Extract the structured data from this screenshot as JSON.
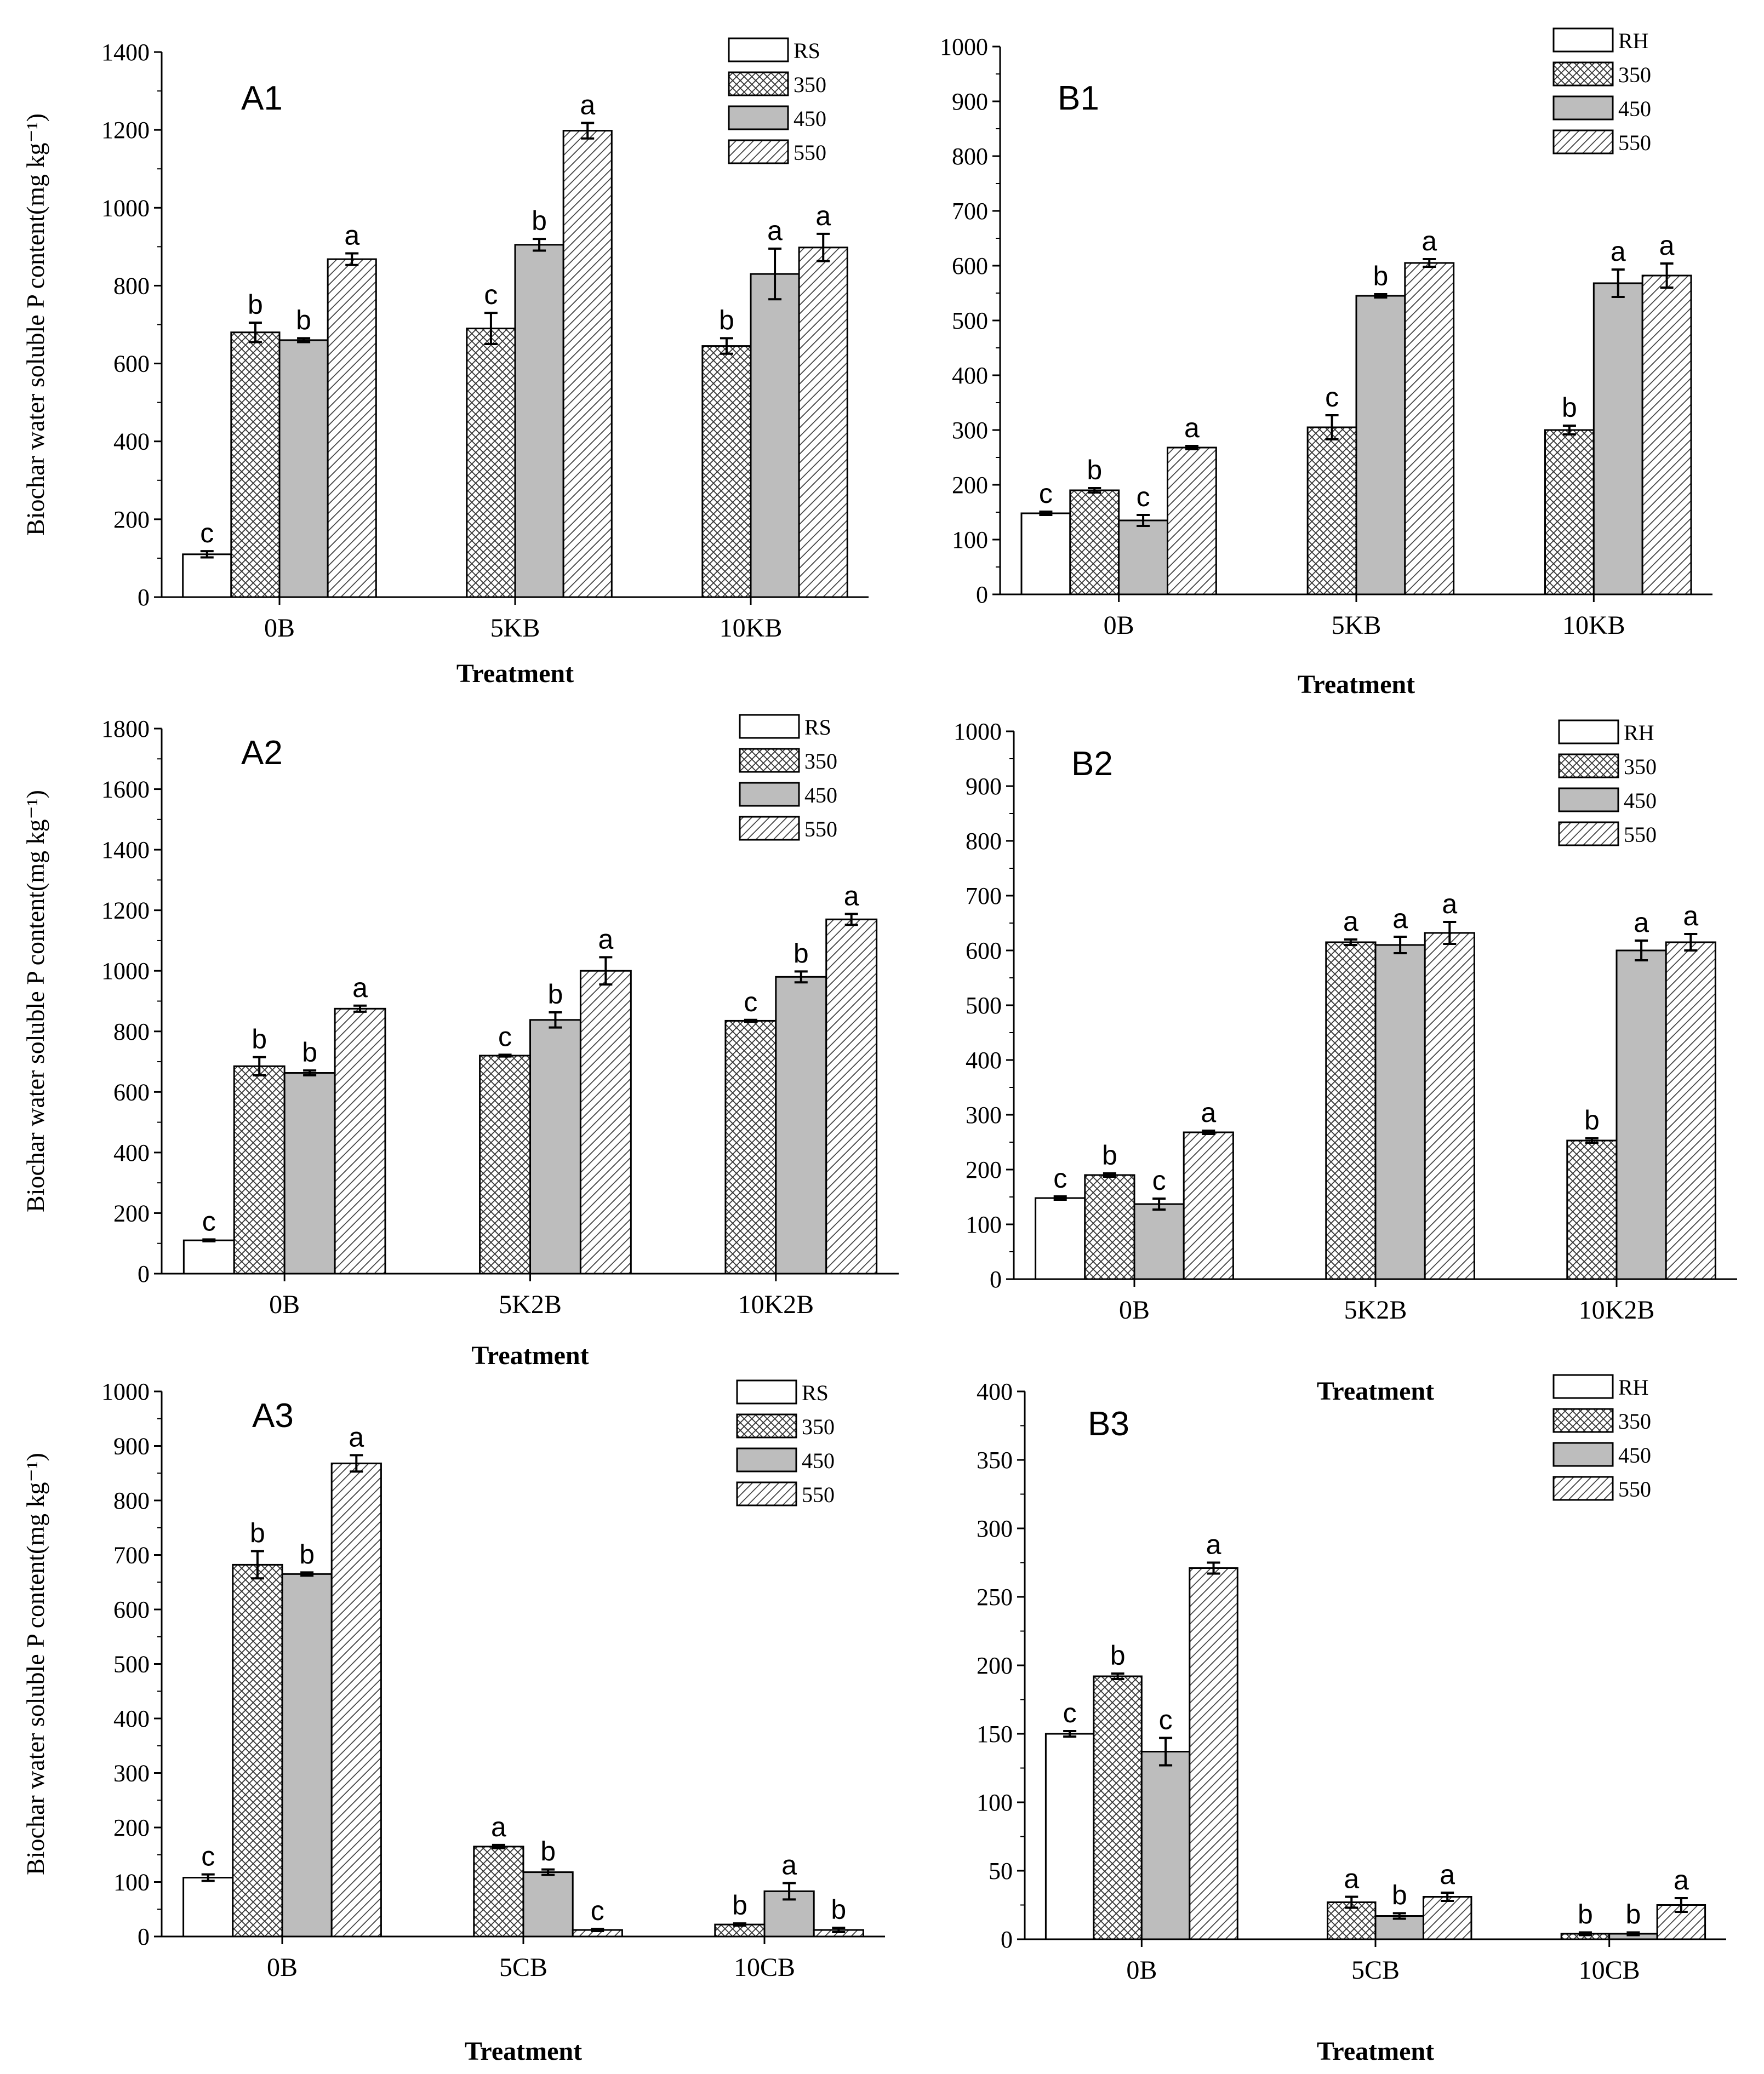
{
  "chart_data": [
    {
      "id": "A1",
      "type": "bar",
      "panel_label": "A1",
      "categories": [
        "0B",
        "5KB",
        "10KB"
      ],
      "legend_title_series": [
        "RS",
        "350",
        "450",
        "550"
      ],
      "series": [
        {
          "name": "RS",
          "values": [
            110,
            null,
            null
          ],
          "errors": [
            8,
            null,
            null
          ],
          "letters": [
            "c",
            "",
            ""
          ]
        },
        {
          "name": "350",
          "values": [
            680,
            690,
            645
          ],
          "errors": [
            25,
            40,
            20
          ],
          "letters": [
            "b",
            "c",
            "b"
          ]
        },
        {
          "name": "450",
          "values": [
            660,
            905,
            830
          ],
          "errors": [
            5,
            15,
            65
          ],
          "letters": [
            "b",
            "b",
            "a"
          ]
        },
        {
          "name": "550",
          "values": [
            868,
            1198,
            898
          ],
          "errors": [
            15,
            20,
            35
          ],
          "letters": [
            "a",
            "a",
            "a"
          ]
        }
      ],
      "ylabel": "Biochar water soluble P content(mg  kg⁻¹)",
      "xlabel": "Treatment",
      "ylim": [
        0,
        1400
      ],
      "yticks": [
        "0",
        "200",
        "400",
        "600",
        "800",
        "1000",
        "1200",
        "1400"
      ],
      "legend_position": "top-right"
    },
    {
      "id": "B1",
      "type": "bar",
      "panel_label": "B1",
      "categories": [
        "0B",
        "5KB",
        "10KB"
      ],
      "legend_title_series": [
        "RH",
        "350",
        "450",
        "550"
      ],
      "series": [
        {
          "name": "RH",
          "values": [
            148,
            null,
            null
          ],
          "errors": [
            3,
            null,
            null
          ],
          "letters": [
            "c",
            "",
            ""
          ]
        },
        {
          "name": "350",
          "values": [
            190,
            305,
            300
          ],
          "errors": [
            4,
            22,
            8
          ],
          "letters": [
            "b",
            "c",
            "b"
          ]
        },
        {
          "name": "450",
          "values": [
            135,
            545,
            568
          ],
          "errors": [
            10,
            3,
            25
          ],
          "letters": [
            "c",
            "b",
            "a"
          ]
        },
        {
          "name": "550",
          "values": [
            268,
            605,
            582
          ],
          "errors": [
            3,
            7,
            22
          ],
          "letters": [
            "a",
            "a",
            "a"
          ]
        }
      ],
      "ylabel": "",
      "xlabel": "Treatment",
      "ylim": [
        0,
        1000
      ],
      "yticks": [
        "0",
        "100",
        "200",
        "300",
        "400",
        "500",
        "600",
        "700",
        "800",
        "900",
        "1000"
      ],
      "legend_position": "top-right"
    },
    {
      "id": "A2",
      "type": "bar",
      "panel_label": "A2",
      "categories": [
        "0B",
        "5K2B",
        "10K2B"
      ],
      "legend_title_series": [
        "RS",
        "350",
        "450",
        "550"
      ],
      "series": [
        {
          "name": "RS",
          "values": [
            110,
            null,
            null
          ],
          "errors": [
            3,
            null,
            null
          ],
          "letters": [
            "c",
            "",
            ""
          ]
        },
        {
          "name": "350",
          "values": [
            685,
            720,
            835
          ],
          "errors": [
            30,
            3,
            3
          ],
          "letters": [
            "b",
            "c",
            "c"
          ]
        },
        {
          "name": "450",
          "values": [
            663,
            838,
            980
          ],
          "errors": [
            8,
            25,
            18
          ],
          "letters": [
            "b",
            "b",
            "b"
          ]
        },
        {
          "name": "550",
          "values": [
            875,
            1000,
            1170
          ],
          "errors": [
            10,
            45,
            18
          ],
          "letters": [
            "a",
            "a",
            "a"
          ]
        }
      ],
      "ylabel": "Biochar water soluble P content(mg  kg⁻¹)",
      "xlabel": "Treatment",
      "ylim": [
        0,
        1800
      ],
      "yticks": [
        "0",
        "200",
        "400",
        "600",
        "800",
        "1000",
        "1200",
        "1400",
        "1600",
        "1800"
      ],
      "legend_position": "top-right"
    },
    {
      "id": "B2",
      "type": "bar",
      "panel_label": "B2",
      "categories": [
        "0B",
        "5K2B",
        "10K2B"
      ],
      "legend_title_series": [
        "RH",
        "350",
        "450",
        "550"
      ],
      "series": [
        {
          "name": "RH",
          "values": [
            148,
            null,
            null
          ],
          "errors": [
            3,
            null,
            null
          ],
          "letters": [
            "c",
            "",
            ""
          ]
        },
        {
          "name": "350",
          "values": [
            190,
            615,
            253
          ],
          "errors": [
            3,
            5,
            4
          ],
          "letters": [
            "b",
            "a",
            "b"
          ]
        },
        {
          "name": "450",
          "values": [
            137,
            610,
            600
          ],
          "errors": [
            10,
            15,
            18
          ],
          "letters": [
            "c",
            "a",
            "a"
          ]
        },
        {
          "name": "550",
          "values": [
            268,
            632,
            615
          ],
          "errors": [
            3,
            20,
            15
          ],
          "letters": [
            "a",
            "a",
            "a"
          ]
        }
      ],
      "ylabel": "",
      "xlabel": "Treatment",
      "ylim": [
        0,
        1000
      ],
      "yticks": [
        "0",
        "100",
        "200",
        "300",
        "400",
        "500",
        "600",
        "700",
        "800",
        "900",
        "1000"
      ],
      "legend_position": "top-right"
    },
    {
      "id": "A3",
      "type": "bar",
      "panel_label": "A3",
      "categories": [
        "0B",
        "5CB",
        "10CB"
      ],
      "legend_title_series": [
        "RS",
        "350",
        "450",
        "550"
      ],
      "series": [
        {
          "name": "RS",
          "values": [
            108,
            null,
            null
          ],
          "errors": [
            6,
            null,
            null
          ],
          "letters": [
            "c",
            "",
            ""
          ]
        },
        {
          "name": "350",
          "values": [
            682,
            165,
            22
          ],
          "errors": [
            25,
            3,
            2
          ],
          "letters": [
            "b",
            "a",
            "b"
          ]
        },
        {
          "name": "450",
          "values": [
            665,
            118,
            83
          ],
          "errors": [
            3,
            5,
            15
          ],
          "letters": [
            "b",
            "b",
            "a"
          ]
        },
        {
          "name": "550",
          "values": [
            868,
            12,
            12
          ],
          "errors": [
            15,
            2,
            4
          ],
          "letters": [
            "a",
            "c",
            "b"
          ]
        }
      ],
      "ylabel": "Biochar water soluble P content(mg  kg⁻¹)",
      "xlabel": "Treatment",
      "ylim": [
        0,
        1000
      ],
      "yticks": [
        "0",
        "100",
        "200",
        "300",
        "400",
        "500",
        "600",
        "700",
        "800",
        "900",
        "1000"
      ],
      "legend_position": "top-right"
    },
    {
      "id": "B3",
      "type": "bar",
      "panel_label": "B3",
      "categories": [
        "0B",
        "5CB",
        "10CB"
      ],
      "legend_title_series": [
        "RH",
        "350",
        "450",
        "550"
      ],
      "series": [
        {
          "name": "RH",
          "values": [
            150,
            null,
            null
          ],
          "errors": [
            2,
            null,
            null
          ],
          "letters": [
            "c",
            "",
            ""
          ]
        },
        {
          "name": "350",
          "values": [
            192,
            27,
            4
          ],
          "errors": [
            2,
            4,
            1
          ],
          "letters": [
            "b",
            "a",
            "b"
          ]
        },
        {
          "name": "450",
          "values": [
            137,
            17,
            4
          ],
          "errors": [
            10,
            2,
            1
          ],
          "letters": [
            "c",
            "b",
            "b"
          ]
        },
        {
          "name": "550",
          "values": [
            271,
            31,
            25
          ],
          "errors": [
            4,
            3,
            5
          ],
          "letters": [
            "a",
            "a",
            "a"
          ]
        }
      ],
      "ylabel": "",
      "xlabel": "Treatment",
      "ylim": [
        0,
        400
      ],
      "yticks": [
        "0",
        "50",
        "100",
        "150",
        "200",
        "250",
        "300",
        "350",
        "400"
      ],
      "legend_position": "top-right"
    }
  ]
}
